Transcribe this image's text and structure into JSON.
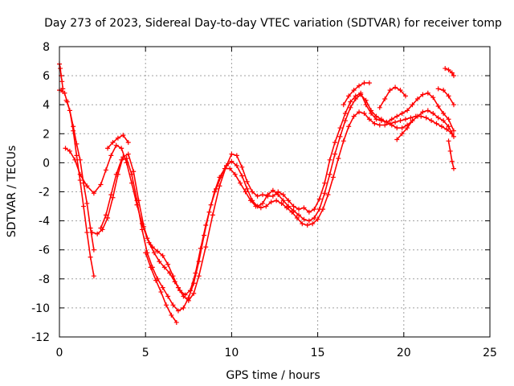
{
  "chart_data": {
    "type": "scatter",
    "title": "Day 273 of 2023, Sidereal Day-to-day VTEC variation (SDTVAR) for receiver tomp",
    "xlabel": "GPS time / hours",
    "ylabel": "SDTVAR / TECUs",
    "xlim": [
      0,
      25
    ],
    "ylim": [
      -12,
      8
    ],
    "xticks": [
      0,
      5,
      10,
      15,
      20,
      25
    ],
    "yticks": [
      -12,
      -10,
      -8,
      -6,
      -4,
      -2,
      0,
      2,
      4,
      6,
      8
    ],
    "grid": true,
    "marker": "+",
    "color": "#ff0000",
    "series": [
      {
        "x": [
          0.0,
          0.05,
          0.1,
          0.15,
          0.2
        ],
        "y": [
          6.8,
          6.5,
          6.0,
          5.6,
          5.1
        ]
      },
      {
        "x": [
          0.0,
          0.1,
          0.2
        ],
        "y": [
          5.0,
          5.0,
          4.9
        ]
      },
      {
        "x": [
          0.3,
          0.45,
          0.6,
          0.8,
          1.0,
          1.2,
          1.4,
          1.6,
          1.8,
          2.0
        ],
        "y": [
          4.8,
          4.2,
          3.6,
          2.2,
          0.5,
          -1.2,
          -3.0,
          -4.8,
          -6.5,
          -7.8
        ]
      },
      {
        "x": [
          0.4,
          0.6,
          0.8,
          1.0,
          1.2,
          1.4,
          1.6,
          1.8,
          2.0
        ],
        "y": [
          4.3,
          3.6,
          2.5,
          1.3,
          0.2,
          -1.4,
          -2.8,
          -4.5,
          -6.0
        ]
      },
      {
        "x": [
          0.35,
          0.6,
          0.9,
          1.2,
          1.6,
          2.0,
          2.4,
          2.7,
          3.0,
          3.3,
          3.6,
          3.9,
          4.2,
          4.5,
          4.8,
          5.1,
          5.4,
          5.7,
          6.0,
          6.3,
          6.6,
          6.9,
          7.2,
          7.5,
          7.8,
          8.1,
          8.5,
          8.9,
          9.3,
          9.7,
          10.0,
          10.3,
          10.6,
          10.9,
          11.2,
          11.5,
          11.8,
          12.1,
          12.4,
          12.7,
          13.0,
          13.3,
          13.6,
          13.9,
          14.2,
          14.5,
          14.8,
          15.1,
          15.4,
          15.7,
          16.0,
          16.3,
          16.6,
          16.9,
          17.2,
          17.5,
          17.8,
          18.1,
          18.4,
          18.7,
          19.0,
          19.3,
          19.6,
          19.9,
          20.2,
          20.5,
          20.8,
          21.1,
          21.4,
          21.7,
          22.0,
          22.3,
          22.6,
          22.9
        ],
        "y": [
          1.0,
          0.8,
          0.2,
          -0.8,
          -1.6,
          -2.1,
          -1.5,
          -0.5,
          0.5,
          1.2,
          1.0,
          0.0,
          -1.4,
          -2.9,
          -4.2,
          -5.2,
          -5.8,
          -6.1,
          -6.4,
          -7.0,
          -7.8,
          -8.6,
          -9.2,
          -9.5,
          -9.0,
          -7.8,
          -5.8,
          -3.6,
          -1.6,
          -0.2,
          0.6,
          0.5,
          -0.3,
          -1.3,
          -2.0,
          -2.3,
          -2.2,
          -2.3,
          -2.3,
          -2.0,
          -2.2,
          -2.6,
          -3.0,
          -3.2,
          -3.1,
          -3.4,
          -3.2,
          -2.5,
          -1.4,
          0.2,
          1.4,
          2.4,
          3.4,
          4.2,
          4.6,
          4.8,
          4.0,
          3.4,
          3.0,
          2.9,
          2.8,
          3.0,
          3.2,
          3.4,
          3.6,
          4.0,
          4.4,
          4.7,
          4.8,
          4.5,
          3.9,
          3.4,
          3.0,
          2.2
        ]
      },
      {
        "x": [
          1.9,
          2.2,
          2.5,
          2.8,
          3.1,
          3.4,
          3.7,
          4.0,
          4.3,
          4.6,
          4.9,
          5.2,
          5.5,
          5.8,
          6.1,
          6.4,
          6.7,
          7.0,
          7.3,
          7.6,
          7.9,
          8.2,
          8.5,
          8.8,
          9.1,
          9.4,
          9.7,
          10.0,
          10.3,
          10.6,
          10.9,
          11.2,
          11.5,
          11.8,
          12.1,
          12.4,
          12.7,
          13.0,
          13.3,
          13.6,
          13.9,
          14.2,
          14.5,
          14.8,
          15.1,
          15.4,
          15.7,
          16.0,
          16.3,
          16.6,
          16.9,
          17.2,
          17.5,
          17.8,
          18.1,
          18.4,
          18.7,
          19.0,
          19.3,
          19.6,
          19.9,
          20.2,
          20.5,
          20.8,
          21.1,
          21.4,
          21.7,
          22.0,
          22.3,
          22.6,
          22.9
        ],
        "y": [
          -4.8,
          -4.9,
          -4.6,
          -3.8,
          -2.4,
          -0.8,
          0.4,
          0.6,
          -0.6,
          -2.6,
          -4.4,
          -5.5,
          -6.2,
          -6.8,
          -7.2,
          -7.6,
          -8.2,
          -8.8,
          -9.1,
          -8.8,
          -7.6,
          -5.9,
          -4.3,
          -2.9,
          -1.8,
          -0.9,
          -0.2,
          0.1,
          -0.2,
          -0.9,
          -1.8,
          -2.6,
          -3.0,
          -2.8,
          -2.2,
          -1.9,
          -2.2,
          -2.6,
          -3.0,
          -3.3,
          -3.6,
          -3.9,
          -4.0,
          -3.8,
          -3.2,
          -2.1,
          -0.8,
          0.6,
          1.8,
          2.9,
          3.8,
          4.4,
          4.7,
          4.3,
          3.6,
          3.2,
          3.0,
          2.8,
          2.6,
          2.4,
          2.4,
          2.6,
          2.9,
          3.2,
          3.5,
          3.6,
          3.4,
          3.1,
          2.9,
          2.5,
          1.8
        ]
      },
      {
        "x": [
          2.4,
          2.7,
          3.0,
          3.3,
          3.6,
          3.9,
          4.2,
          4.5,
          4.8,
          5.1,
          5.4,
          5.7,
          6.0,
          6.3,
          6.6,
          6.9,
          7.2,
          7.5,
          7.8,
          8.1,
          8.4,
          8.7,
          9.0,
          9.3,
          9.6,
          9.9,
          10.2,
          10.5,
          10.8,
          11.1,
          11.4,
          11.7,
          12.0,
          12.3,
          12.6,
          12.9,
          13.2,
          13.5,
          13.8,
          14.1,
          14.4,
          14.7,
          15.0,
          15.3,
          15.6,
          15.9,
          16.2,
          16.5,
          16.8,
          17.1,
          17.4,
          17.7,
          18.0,
          18.3,
          18.6,
          18.9,
          19.2,
          19.5,
          19.8,
          20.1,
          20.4,
          20.7,
          21.0,
          21.3,
          21.6,
          21.9,
          22.2,
          22.5,
          22.8
        ],
        "y": [
          -4.5,
          -3.6,
          -2.2,
          -0.8,
          0.2,
          0.3,
          -0.8,
          -2.6,
          -4.6,
          -6.2,
          -7.2,
          -8.0,
          -8.6,
          -9.2,
          -9.8,
          -10.2,
          -10.0,
          -9.3,
          -8.3,
          -6.8,
          -5.0,
          -3.4,
          -2.0,
          -1.0,
          -0.4,
          -0.4,
          -0.8,
          -1.4,
          -2.0,
          -2.6,
          -3.0,
          -3.1,
          -3.0,
          -2.7,
          -2.6,
          -2.8,
          -3.1,
          -3.4,
          -3.8,
          -4.2,
          -4.3,
          -4.2,
          -3.9,
          -3.2,
          -2.2,
          -1.0,
          0.3,
          1.5,
          2.5,
          3.2,
          3.5,
          3.4,
          3.0,
          2.7,
          2.6,
          2.6,
          2.7,
          2.8,
          2.9,
          3.0,
          3.1,
          3.2,
          3.2,
          3.1,
          2.9,
          2.7,
          2.5,
          2.3,
          2.0
        ]
      },
      {
        "x": [
          2.8,
          3.1,
          3.4,
          3.7,
          4.0
        ],
        "y": [
          1.0,
          1.4,
          1.7,
          1.9,
          1.4
        ]
      },
      {
        "x": [
          5.0,
          5.3,
          5.6,
          5.9,
          6.2,
          6.5,
          6.8
        ],
        "y": [
          -6.2,
          -7.2,
          -8.1,
          -8.9,
          -9.8,
          -10.5,
          -11.0
        ]
      },
      {
        "x": [
          16.5,
          16.8,
          17.1,
          17.4,
          17.7,
          18.0
        ],
        "y": [
          4.0,
          4.6,
          5.0,
          5.3,
          5.5,
          5.5
        ]
      },
      {
        "x": [
          18.6,
          18.9,
          19.2,
          19.5,
          19.8,
          20.1
        ],
        "y": [
          3.8,
          4.4,
          5.0,
          5.2,
          5.0,
          4.6
        ]
      },
      {
        "x": [
          19.6,
          19.9,
          20.2,
          20.5
        ],
        "y": [
          1.6,
          2.0,
          2.4,
          2.9
        ]
      },
      {
        "x": [
          22.0,
          22.3,
          22.6,
          22.9
        ],
        "y": [
          5.1,
          5.0,
          4.6,
          4.0
        ]
      },
      {
        "x": [
          22.4,
          22.6,
          22.8,
          22.9
        ],
        "y": [
          6.5,
          6.4,
          6.2,
          6.0
        ]
      },
      {
        "x": [
          22.6,
          22.7,
          22.8,
          22.9
        ],
        "y": [
          1.5,
          0.8,
          0.1,
          -0.4
        ]
      }
    ]
  }
}
